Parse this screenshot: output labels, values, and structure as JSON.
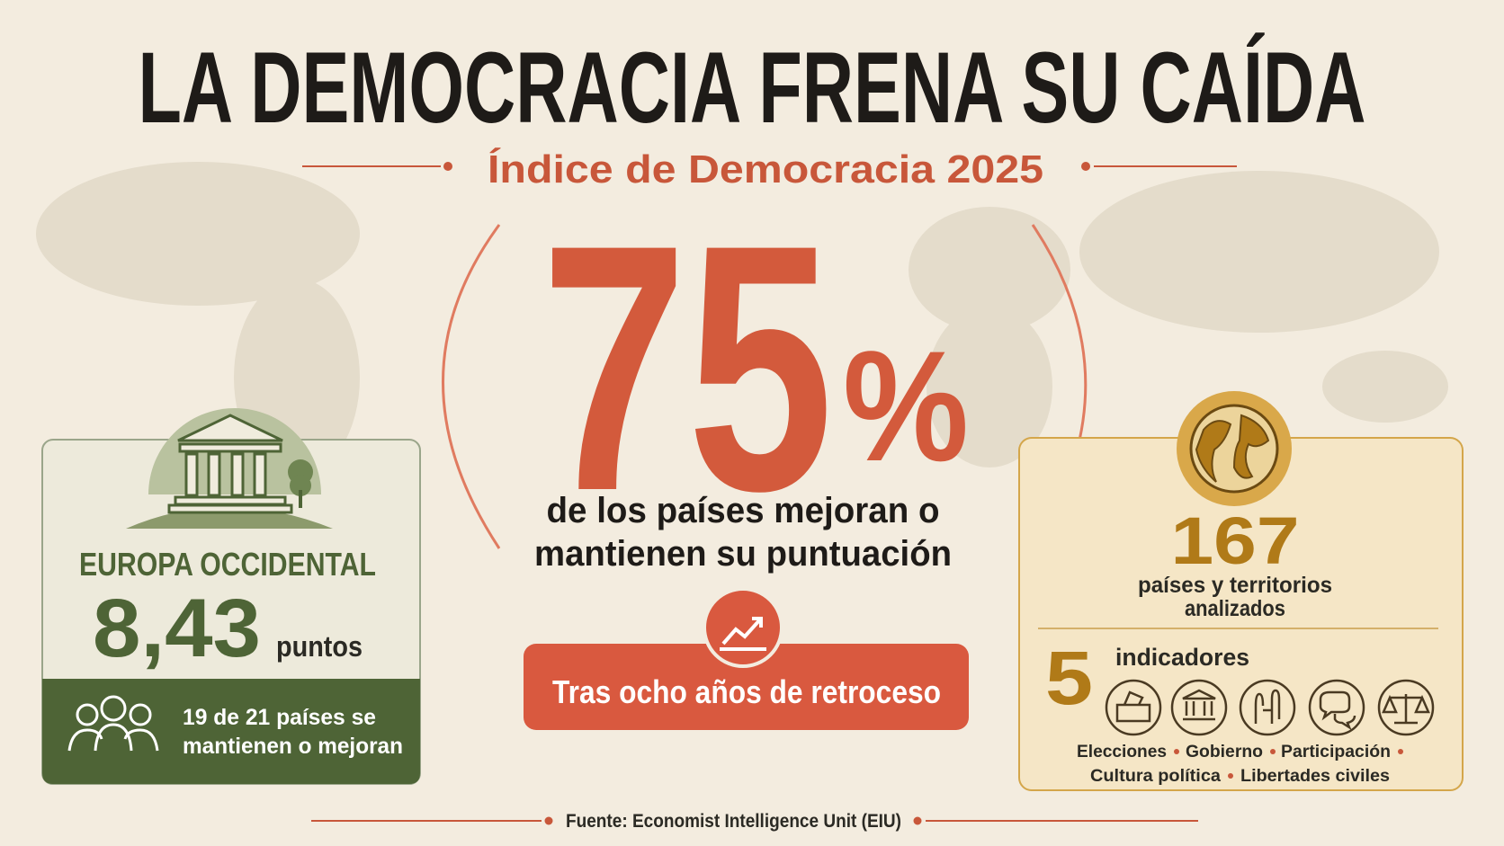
{
  "header": {
    "title": "LA DEMOCRACIA FRENA SU CAÍDA",
    "subtitle": "Índice de Democracia 2025"
  },
  "center": {
    "figure": 75,
    "unit": "%",
    "caption": [
      "de los países mejoran o",
      "mantienen su puntuación"
    ],
    "banner": "Tras ocho años de retroceso"
  },
  "left_panel": {
    "region": "EUROPA OCCIDENTAL",
    "score": "8,43",
    "score_unit": "puntos",
    "note": [
      "19 de 21 países se",
      "mantienen o mejoran"
    ]
  },
  "right_panel": {
    "countries": 167,
    "countries_label": [
      "países y territorios",
      "analizados"
    ],
    "indicators": 5,
    "indicators_label": "indicadores",
    "indicator_names": [
      "Elecciones",
      "Gobierno",
      "Participación",
      "Cultura política",
      "Libertades civiles"
    ]
  },
  "footer": {
    "source": "Fuente: Economist Intelligence Unit (EIU)"
  }
}
